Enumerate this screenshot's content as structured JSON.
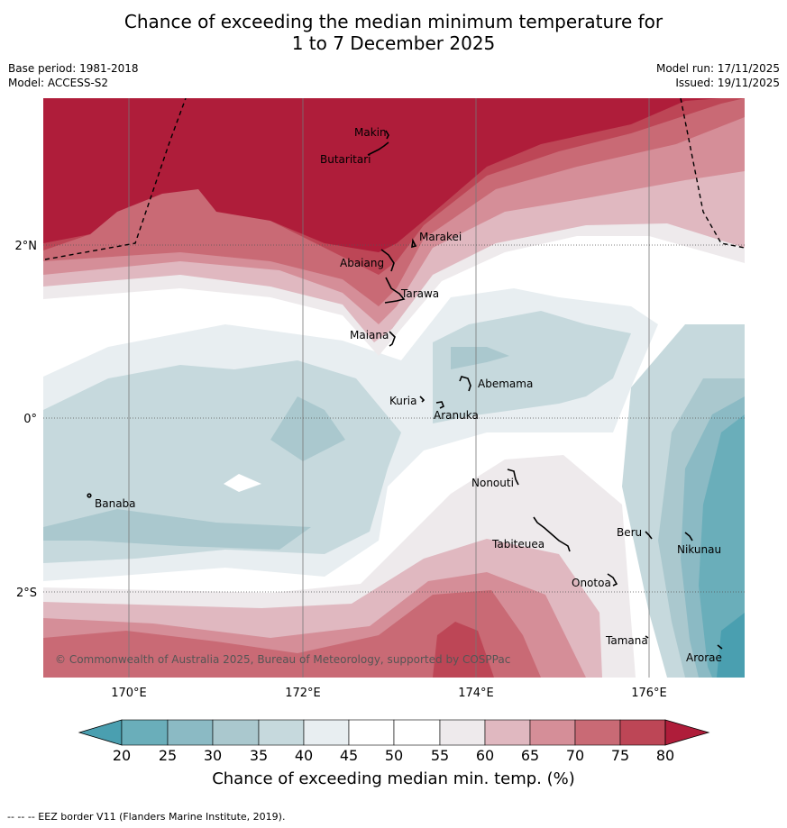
{
  "title": {
    "line1": "Chance of exceeding the median minimum temperature for",
    "line2": "1 to 7 December 2025"
  },
  "meta": {
    "base_period": "Base period: 1981-2018",
    "model": "Model: ACCESS-S2",
    "model_run": "Model run: 17/11/2025",
    "issued": "Issued: 19/11/2025"
  },
  "map": {
    "lon_ticks": [
      "170°E",
      "172°E",
      "174°E",
      "176°E"
    ],
    "lat_ticks": [
      "2°N",
      "0°",
      "2°S"
    ],
    "copyright": "© Commonwealth of Australia 2025, Bureau of Meteorology, supported by COSPPac",
    "places": [
      "Makin",
      "Butaritari",
      "Marakei",
      "Abaiang",
      "Tarawa",
      "Maiana",
      "Abemama",
      "Kuria",
      "Aranuka",
      "Banaba",
      "Nonouti",
      "Tabiteuea",
      "Beru",
      "Nikunau",
      "Onotoa",
      "Tamana",
      "Arorae"
    ]
  },
  "colorbar": {
    "ticks": [
      "20",
      "25",
      "30",
      "35",
      "40",
      "45",
      "50",
      "55",
      "60",
      "65",
      "70",
      "75",
      "80"
    ],
    "colors": [
      "#4a9fb0",
      "#6aaeba",
      "#8bbac4",
      "#aac8ce",
      "#c6d9dd",
      "#e8eef1",
      "#ffffff",
      "#ffffff",
      "#eeeaec",
      "#e0b8c0",
      "#d58e98",
      "#c96a75",
      "#bd4656",
      "#af1d3a"
    ],
    "label": "Chance of exceeding median min. temp. (%)"
  },
  "footer": "-- -- -- EEZ border V11 (Flanders Marine Institute, 2019)."
}
